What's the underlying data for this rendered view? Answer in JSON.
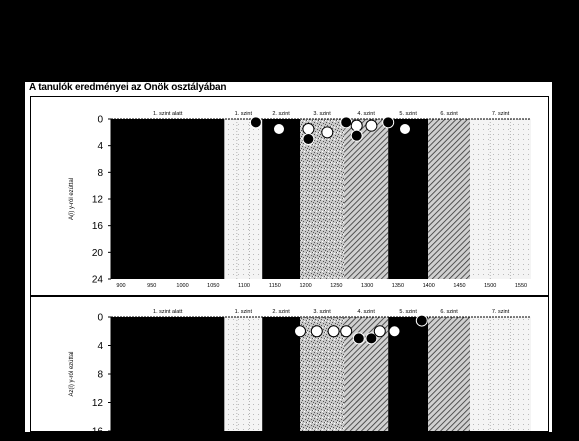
{
  "title": "A tanulók eredményei az Önök osztályában",
  "colors": {
    "frame": "#ffffff",
    "dark_band": "#000000",
    "speckle_band": "#c8c8c8",
    "hatched_band": "#808080",
    "light_band": "#f4f4f4",
    "marker_fill": "#ffffff",
    "marker_dark": "#000000"
  },
  "chart_data": [
    {
      "type": "scatter",
      "title": "",
      "ylabel": "A(i) y-ról ezúttal",
      "xlabel": "",
      "ylim": [
        0,
        24
      ],
      "y_inverted": true,
      "y_ticks": [
        "0",
        "4",
        "8",
        "12",
        "16",
        "20",
        "24"
      ],
      "y_tick_values": [
        0,
        4,
        8,
        12,
        16,
        20,
        24
      ],
      "x_ticks": [
        "900",
        "950",
        "1000",
        "1050",
        "1100",
        "1150",
        "1200",
        "1250",
        "1300",
        "1350",
        "1400",
        "1450",
        "1500",
        "1550"
      ],
      "band_labels": [
        "1. szint alatt",
        "1. szint",
        "2. szint",
        "3. szint",
        "4. szint",
        "5. szint",
        "6. szint",
        "7. szint"
      ],
      "bands": [
        {
          "label": "1. szint alatt",
          "from": 0.0,
          "to": 0.27,
          "style": "dark"
        },
        {
          "label": "1. szint",
          "from": 0.27,
          "to": 0.36,
          "style": "light"
        },
        {
          "label": "2. szint",
          "from": 0.36,
          "to": 0.45,
          "style": "dark"
        },
        {
          "label": "3. szint",
          "from": 0.45,
          "to": 0.555,
          "style": "speckle"
        },
        {
          "label": "4. szint",
          "from": 0.555,
          "to": 0.66,
          "style": "hatched"
        },
        {
          "label": "5. szint",
          "from": 0.66,
          "to": 0.755,
          "style": "dark"
        },
        {
          "label": "6. szint",
          "from": 0.755,
          "to": 0.855,
          "style": "hatched"
        },
        {
          "label": "7. szint",
          "from": 0.855,
          "to": 1.0,
          "style": "light"
        }
      ],
      "markers": [
        {
          "x": 0.345,
          "y": 0.5,
          "style": "dark"
        },
        {
          "x": 0.4,
          "y": 1.5,
          "style": "open"
        },
        {
          "x": 0.47,
          "y": 1.5,
          "style": "open"
        },
        {
          "x": 0.47,
          "y": 3.0,
          "style": "dark"
        },
        {
          "x": 0.515,
          "y": 2.0,
          "style": "open"
        },
        {
          "x": 0.56,
          "y": 0.5,
          "style": "dark"
        },
        {
          "x": 0.585,
          "y": 1.0,
          "style": "open"
        },
        {
          "x": 0.585,
          "y": 2.5,
          "style": "dark"
        },
        {
          "x": 0.62,
          "y": 1.0,
          "style": "open"
        },
        {
          "x": 0.66,
          "y": 0.5,
          "style": "dark"
        },
        {
          "x": 0.7,
          "y": 1.5,
          "style": "open"
        }
      ]
    },
    {
      "type": "scatter",
      "title": "",
      "ylabel": "Az(i) y-ról ezúttal",
      "xlabel": "",
      "ylim": [
        0,
        16
      ],
      "y_inverted": true,
      "y_ticks": [
        "0",
        "4",
        "8",
        "12",
        "16"
      ],
      "y_tick_values": [
        0,
        4,
        8,
        12,
        16
      ],
      "x_ticks": [],
      "band_labels": [
        "1. szint alatt",
        "1. szint",
        "2. szint",
        "3. szint",
        "4. szint",
        "5. szint",
        "6. szint",
        "7. szint"
      ],
      "bands": [
        {
          "label": "1. szint alatt",
          "from": 0.0,
          "to": 0.27,
          "style": "dark"
        },
        {
          "label": "1. szint",
          "from": 0.27,
          "to": 0.36,
          "style": "light"
        },
        {
          "label": "2. szint",
          "from": 0.36,
          "to": 0.45,
          "style": "dark"
        },
        {
          "label": "3. szint",
          "from": 0.45,
          "to": 0.555,
          "style": "speckle"
        },
        {
          "label": "4. szint",
          "from": 0.555,
          "to": 0.66,
          "style": "hatched"
        },
        {
          "label": "5. szint",
          "from": 0.66,
          "to": 0.755,
          "style": "dark"
        },
        {
          "label": "6. szint",
          "from": 0.755,
          "to": 0.855,
          "style": "hatched"
        },
        {
          "label": "7. szint",
          "from": 0.855,
          "to": 1.0,
          "style": "light"
        }
      ],
      "markers": [
        {
          "x": 0.45,
          "y": 2.0,
          "style": "open"
        },
        {
          "x": 0.49,
          "y": 2.0,
          "style": "open"
        },
        {
          "x": 0.53,
          "y": 2.0,
          "style": "open"
        },
        {
          "x": 0.56,
          "y": 2.0,
          "style": "open"
        },
        {
          "x": 0.59,
          "y": 3.0,
          "style": "dark"
        },
        {
          "x": 0.62,
          "y": 3.0,
          "style": "dark"
        },
        {
          "x": 0.64,
          "y": 2.0,
          "style": "open"
        },
        {
          "x": 0.675,
          "y": 2.0,
          "style": "open"
        },
        {
          "x": 0.74,
          "y": 0.5,
          "style": "dark"
        }
      ]
    }
  ]
}
